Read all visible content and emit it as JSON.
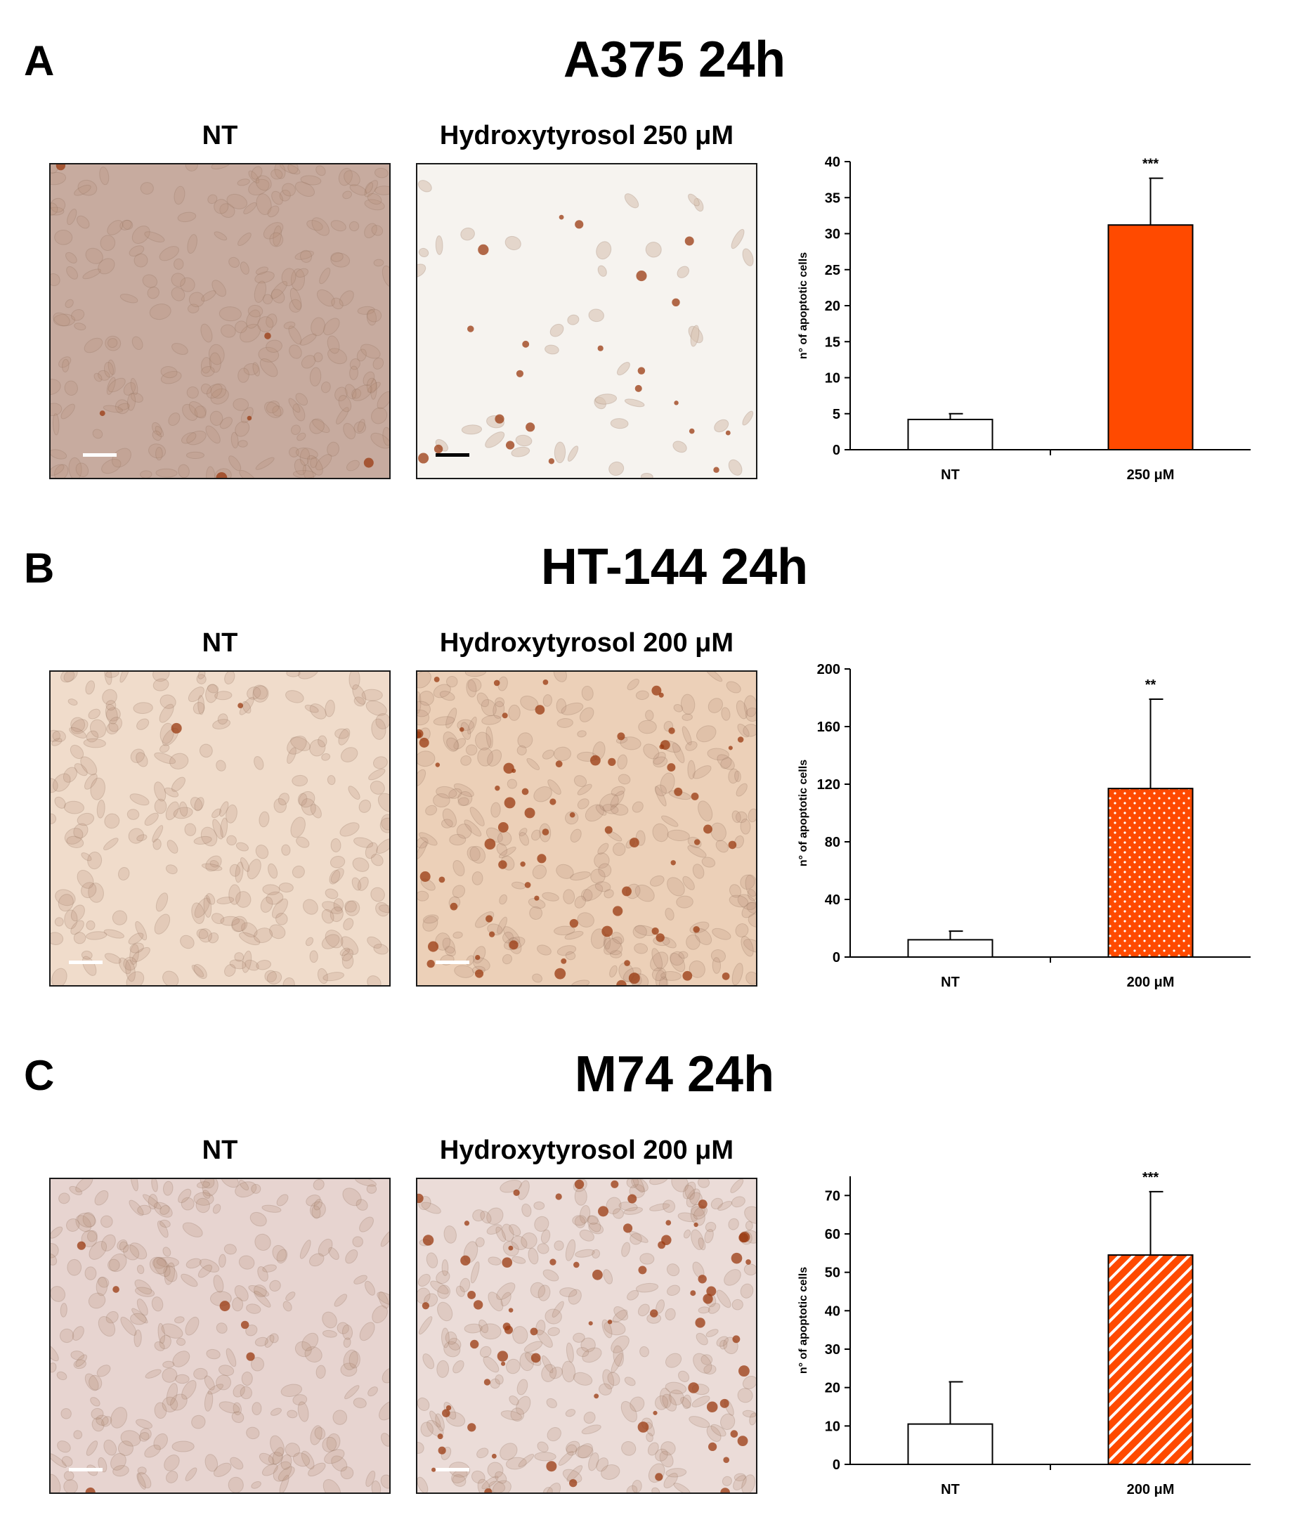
{
  "panels": [
    {
      "letter": "A",
      "title": "A375 24h",
      "left_label": "NT",
      "right_label": "Hydroxytyrosol 250 μM",
      "left_scalebar_color": "#ffffff",
      "right_scalebar_color": "#000000",
      "left_tone": "#c7ab9f",
      "right_tone": "#f6f3ef",
      "pattern": "solid",
      "chart_data": {
        "type": "bar",
        "categories": [
          "NT",
          "250 μM"
        ],
        "values": [
          4.2,
          31.2
        ],
        "errors": [
          0.8,
          6.5
        ],
        "significance": [
          "",
          "***"
        ],
        "ylabel": "n° of apoptotic cells",
        "ylim": [
          0,
          40
        ],
        "yticks": [
          0,
          5,
          10,
          15,
          20,
          25,
          30,
          35,
          40
        ],
        "colors": [
          "#ffffff",
          "#ff4a00"
        ],
        "grid": false
      }
    },
    {
      "letter": "B",
      "title": "HT-144 24h",
      "left_label": "NT",
      "right_label": "Hydroxytyrosol 200 μM",
      "left_scalebar_color": "#ffffff",
      "right_scalebar_color": "#ffffff",
      "left_tone": "#f0dccb",
      "right_tone": "#ecd0b8",
      "pattern": "dots",
      "chart_data": {
        "type": "bar",
        "categories": [
          "NT",
          "200 μM"
        ],
        "values": [
          12,
          117
        ],
        "errors": [
          6,
          62
        ],
        "significance": [
          "",
          "**"
        ],
        "ylabel": "n° of apoptotic cells",
        "ylim": [
          0,
          200
        ],
        "yticks": [
          0,
          40,
          80,
          120,
          160,
          200
        ],
        "colors": [
          "#ffffff",
          "#ff4a00"
        ],
        "grid": false
      }
    },
    {
      "letter": "C",
      "title": "M74 24h",
      "left_label": "NT",
      "right_label": "Hydroxytyrosol 200 μM",
      "left_scalebar_color": "#ffffff",
      "right_scalebar_color": "#ffffff",
      "left_tone": "#e7d4d0",
      "right_tone": "#ebdcd8",
      "pattern": "stripes",
      "chart_data": {
        "type": "bar",
        "categories": [
          "NT",
          "200 μM"
        ],
        "values": [
          10.5,
          54.5
        ],
        "errors": [
          11,
          16.5
        ],
        "significance": [
          "",
          "***"
        ],
        "ylabel": "n° of apoptotic cells",
        "ylim": [
          0,
          75
        ],
        "yticks": [
          0,
          10,
          20,
          30,
          40,
          50,
          60,
          70
        ],
        "colors": [
          "#ffffff",
          "#ff4a00"
        ],
        "grid": false
      }
    }
  ]
}
